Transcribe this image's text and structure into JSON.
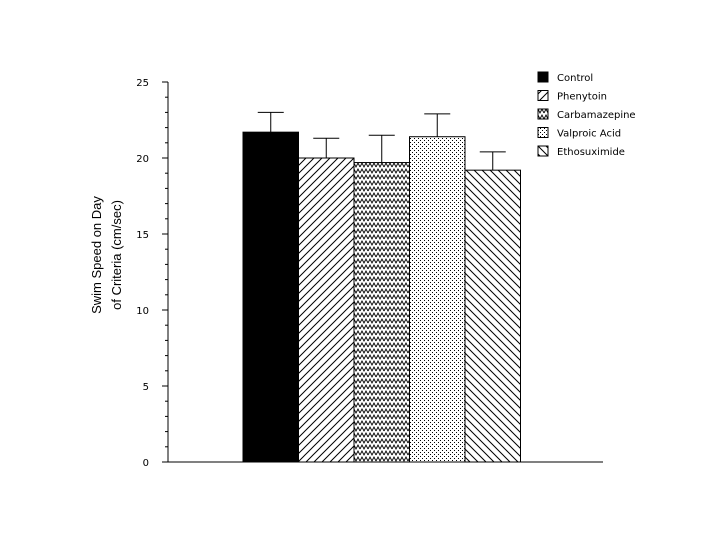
{
  "chart_data": {
    "type": "bar",
    "ylabel_lines": [
      "Swim Speed on Day",
      "of Criteria (cm/sec)"
    ],
    "ylim": [
      0,
      25
    ],
    "yticks": [
      "0",
      "5",
      "10",
      "15",
      "20",
      "25"
    ],
    "grid": false,
    "legend_position": "top-right",
    "series": [
      {
        "name": "Control",
        "value": 21.7,
        "error": 1.3,
        "pattern": "solid"
      },
      {
        "name": "Phenytoin",
        "value": 20.0,
        "error": 1.3,
        "pattern": "diag-up"
      },
      {
        "name": "Carbamazepine",
        "value": 19.7,
        "error": 1.8,
        "pattern": "zigzag"
      },
      {
        "name": "Valproic Acid",
        "value": 21.4,
        "error": 1.5,
        "pattern": "dots"
      },
      {
        "name": "Ethosuximide",
        "value": 19.2,
        "error": 1.2,
        "pattern": "diag-down"
      }
    ]
  }
}
